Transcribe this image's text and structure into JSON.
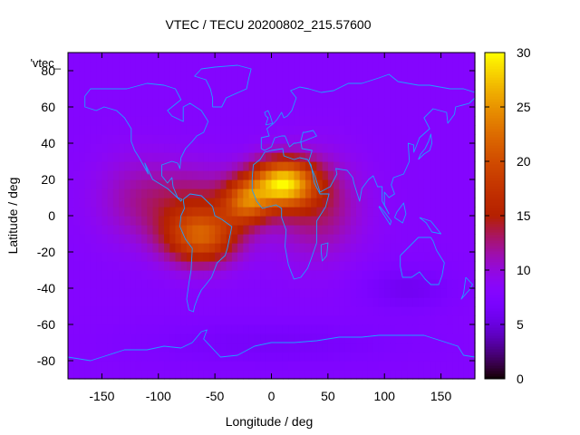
{
  "chart_data": {
    "type": "heatmap",
    "title": "VTEC / TECU 20200802_215.57600",
    "xlabel": "Longitude / deg",
    "ylabel": "Latitude / deg",
    "xlim": [
      -180,
      180
    ],
    "ylim": [
      -90,
      90
    ],
    "xticks": [
      -150,
      -100,
      -50,
      0,
      50,
      100,
      150
    ],
    "yticks": [
      -80,
      -60,
      -40,
      -20,
      0,
      20,
      40,
      60,
      80
    ],
    "colorbar": {
      "label": "",
      "range": [
        0,
        30
      ],
      "ticks": [
        0,
        5,
        10,
        15,
        20,
        25,
        30
      ]
    },
    "legend": {
      "entry": "'vtec_",
      "position": "top-left"
    },
    "background_level": 8,
    "features": [
      {
        "lon": 10,
        "lat": 18,
        "slon": 28,
        "slat": 13,
        "amp": 19
      },
      {
        "lon": -22,
        "lat": 8,
        "slon": 20,
        "slat": 12,
        "amp": 11
      },
      {
        "lon": -62,
        "lat": -12,
        "slon": 32,
        "slat": 15,
        "amp": 11
      },
      {
        "lon": -65,
        "lat": 5,
        "slon": 45,
        "slat": 22,
        "amp": 5
      },
      {
        "lon": 40,
        "lat": 5,
        "slon": 40,
        "slat": 28,
        "amp": 5
      },
      {
        "lon": -120,
        "lat": 10,
        "slon": 40,
        "slat": 25,
        "amp": 3
      },
      {
        "lon": 120,
        "lat": -40,
        "slon": 40,
        "slat": 12,
        "amp": -2
      },
      {
        "lon": 0,
        "lat": -70,
        "slon": 120,
        "slat": 12,
        "amp": -1.5
      }
    ]
  }
}
